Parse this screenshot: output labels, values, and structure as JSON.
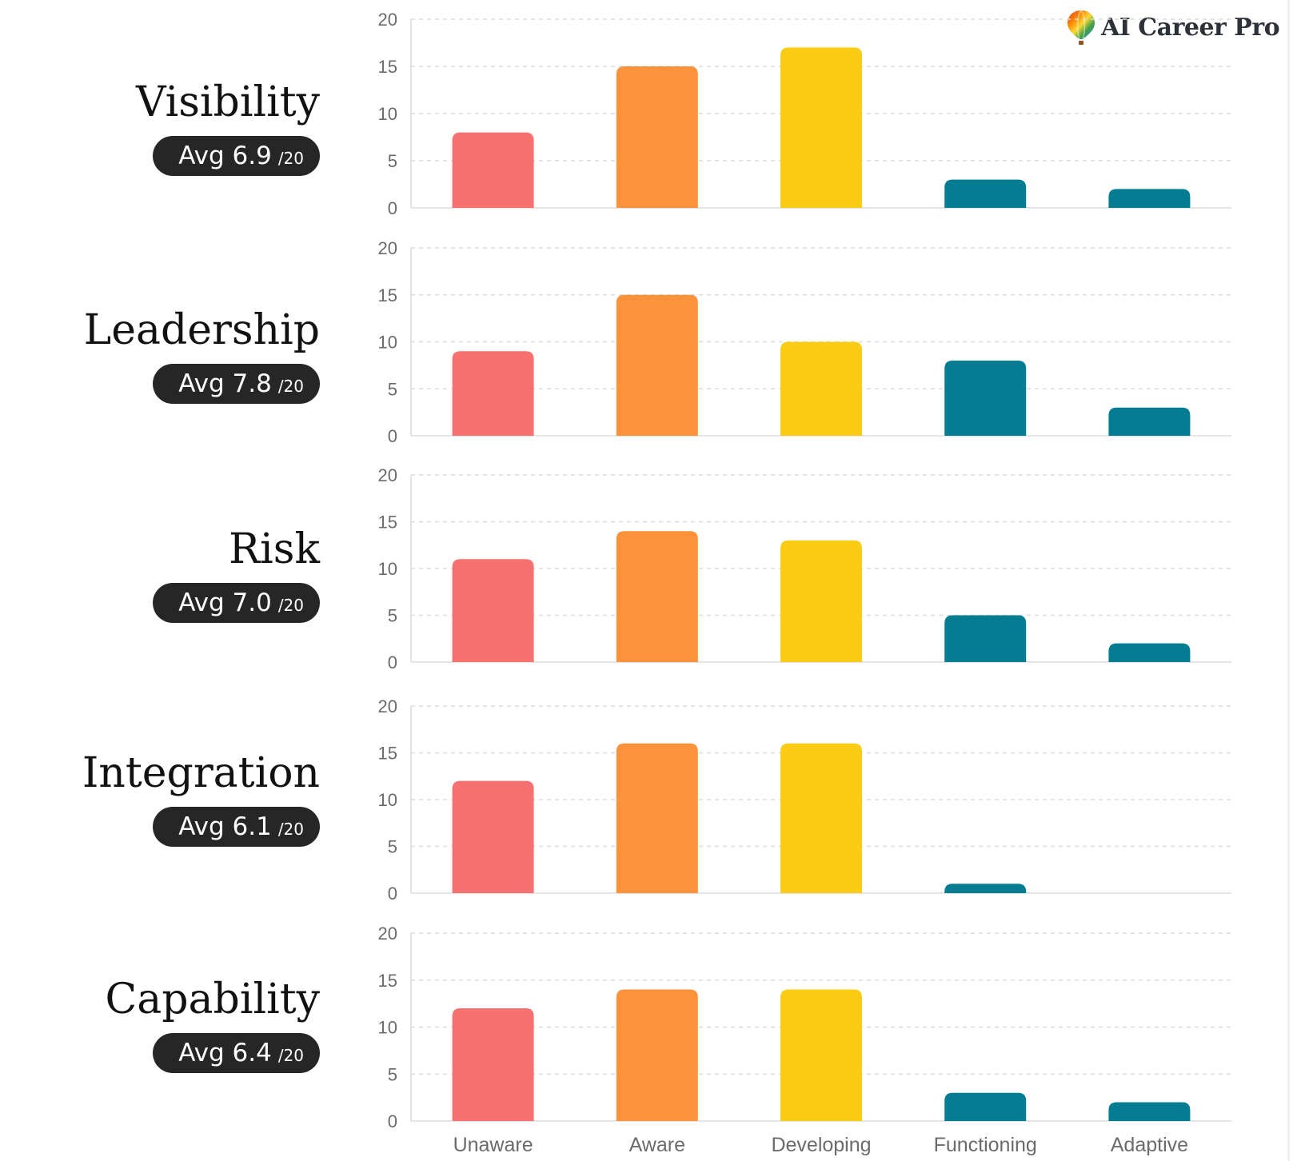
{
  "brand": {
    "name": "AI Career Pro",
    "icon": "balloon-logo-icon"
  },
  "colors": {
    "unaware": "#f87171",
    "aware": "#fb923c",
    "developing": "#facc15",
    "functioning": "#047d93",
    "adaptive": "#047d93",
    "gridline": "#dcdcdc",
    "axis_text": "#6b6b6b",
    "pill_bg": "#262626"
  },
  "chart_data": {
    "type": "bar",
    "categories": [
      "Unaware",
      "Aware",
      "Developing",
      "Functioning",
      "Adaptive"
    ],
    "ylim": [
      0,
      20
    ],
    "yticks": [
      0,
      5,
      10,
      15,
      20
    ],
    "grid": true,
    "panels": [
      {
        "name": "Visibility",
        "avg_label": "Avg 6.9",
        "avg_max": "/20",
        "values": [
          8,
          15,
          17,
          3,
          2
        ]
      },
      {
        "name": "Leadership",
        "avg_label": "Avg 7.8",
        "avg_max": "/20",
        "values": [
          9,
          15,
          10,
          8,
          3
        ]
      },
      {
        "name": "Risk",
        "avg_label": "Avg 7.0",
        "avg_max": "/20",
        "values": [
          11,
          14,
          13,
          5,
          2
        ]
      },
      {
        "name": "Integration",
        "avg_label": "Avg 6.1",
        "avg_max": "/20",
        "values": [
          12,
          16,
          16,
          1,
          0
        ]
      },
      {
        "name": "Capability",
        "avg_label": "Avg 6.4",
        "avg_max": "/20",
        "values": [
          12,
          14,
          14,
          3,
          2
        ]
      }
    ]
  }
}
